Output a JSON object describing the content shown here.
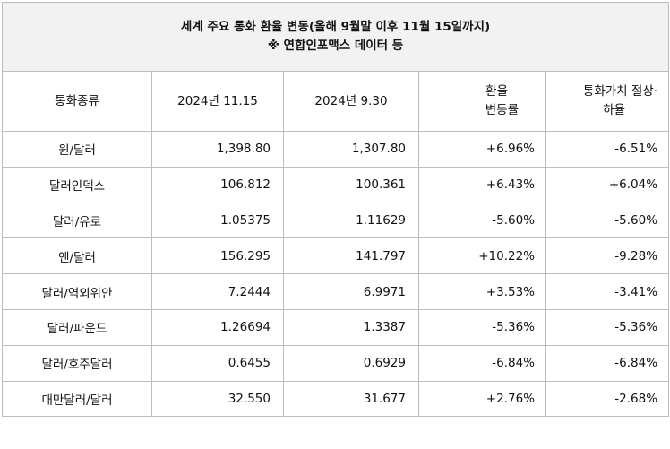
{
  "title": {
    "line1": "세계 주요 통화 환율 변동(올해 9월말 이후 11월 15일까지)",
    "line2": "※ 연합인포맥스 데이터 등"
  },
  "headers": {
    "type": "통화종류",
    "date1": "2024년 11.15",
    "date2": "2024년 9.30",
    "change_l1": "환율",
    "change_l2": "변동률",
    "value_l1": "통화가치 절상·",
    "value_l2": "하율"
  },
  "rows": [
    {
      "name": "원/달러",
      "v1": "1,398.80",
      "v2": "1,307.80",
      "rate": "+6.96%",
      "value": "-6.51%"
    },
    {
      "name": "달러인덱스",
      "v1": "106.812",
      "v2": "100.361",
      "rate": "+6.43%",
      "value": "+6.04%"
    },
    {
      "name": "달러/유로",
      "v1": "1.05375",
      "v2": "1.11629",
      "rate": "-5.60%",
      "value": "-5.60%"
    },
    {
      "name": "엔/달러",
      "v1": "156.295",
      "v2": "141.797",
      "rate": "+10.22%",
      "value": "-9.28%"
    },
    {
      "name": "달러/역외위안",
      "v1": "7.2444",
      "v2": "6.9971",
      "rate": "+3.53%",
      "value": "-3.41%"
    },
    {
      "name": "달러/파운드",
      "v1": "1.26694",
      "v2": "1.3387",
      "rate": "-5.36%",
      "value": "-5.36%"
    },
    {
      "name": "달러/호주달러",
      "v1": "0.6455",
      "v2": "0.6929",
      "rate": "-6.84%",
      "value": "-6.84%"
    },
    {
      "name": "대만달러/달러",
      "v1": "32.550",
      "v2": "31.677",
      "rate": "+2.76%",
      "value": "-2.68%"
    }
  ]
}
